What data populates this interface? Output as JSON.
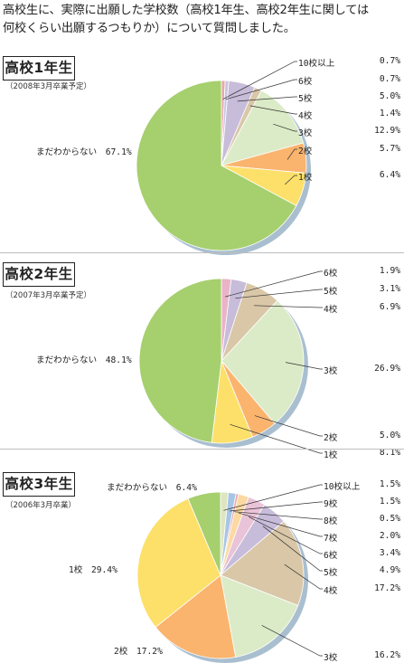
{
  "header": {
    "title_line1": "高校生に、実際に出願した学校数（高校1年生、高校2年生に関しては",
    "title_line2": "何校くらい出願するつもりか）について質問しました。"
  },
  "chart_data": [
    {
      "type": "pie",
      "title": "高校1年生",
      "subtitle": "（2008年3月卒業予定）",
      "start": "top",
      "direction": "clockwise",
      "slices": [
        {
          "label": "10校以上",
          "value": 0.7,
          "display": "0.7%",
          "color": "#e9a6a8"
        },
        {
          "label": "6校",
          "value": 0.7,
          "display": "0.7%",
          "color": "#c9c4e3"
        },
        {
          "label": "5校",
          "value": 5.0,
          "display": "5.0%",
          "color": "#c7bcd9"
        },
        {
          "label": "4校",
          "value": 1.4,
          "display": "1.4%",
          "color": "#d9c7a8"
        },
        {
          "label": "3校",
          "value": 12.9,
          "display": "12.9%",
          "color": "#dbebc7"
        },
        {
          "label": "2校",
          "value": 5.7,
          "display": "5.7%",
          "color": "#fab46e"
        },
        {
          "label": "1校",
          "value": 6.4,
          "display": "6.4%",
          "color": "#fde06a"
        },
        {
          "label": "まだわからない",
          "value": 67.1,
          "display": "67.1%",
          "color": "#a6cf6e"
        }
      ]
    },
    {
      "type": "pie",
      "title": "高校2年生",
      "subtitle": "（2007年3月卒業予定）",
      "start": "top",
      "direction": "clockwise",
      "slices": [
        {
          "label": "6校",
          "value": 1.9,
          "display": "1.9%",
          "color": "#e9b3c8"
        },
        {
          "label": "5校",
          "value": 3.1,
          "display": "3.1%",
          "color": "#c7bcd9"
        },
        {
          "label": "4校",
          "value": 6.9,
          "display": "6.9%",
          "color": "#d9c7a8"
        },
        {
          "label": "3校",
          "value": 26.9,
          "display": "26.9%",
          "color": "#dbebc7"
        },
        {
          "label": "2校",
          "value": 5.0,
          "display": "5.0%",
          "color": "#fab46e"
        },
        {
          "label": "1校",
          "value": 8.1,
          "display": "8.1%",
          "color": "#fde06a"
        },
        {
          "label": "まだわからない",
          "value": 48.1,
          "display": "48.1%",
          "color": "#a6cf6e"
        }
      ]
    },
    {
      "type": "pie",
      "title": "高校3年生",
      "subtitle": "（2006年3月卒業）",
      "start": "top",
      "direction": "clockwise",
      "slices": [
        {
          "label": "10校以上",
          "value": 1.5,
          "display": "1.5%",
          "color": "#dde6c0"
        },
        {
          "label": "9校",
          "value": 1.5,
          "display": "1.5%",
          "color": "#a7c6e6"
        },
        {
          "label": "8校",
          "value": 0.5,
          "display": "0.5%",
          "color": "#f0a8b0"
        },
        {
          "label": "7校",
          "value": 2.0,
          "display": "2.0%",
          "color": "#fbd9a0"
        },
        {
          "label": "6校",
          "value": 3.4,
          "display": "3.4%",
          "color": "#e9c3d7"
        },
        {
          "label": "5校",
          "value": 4.9,
          "display": "4.9%",
          "color": "#c7bcd9"
        },
        {
          "label": "4校",
          "value": 17.2,
          "display": "17.2%",
          "color": "#d9c7a8"
        },
        {
          "label": "3校",
          "value": 16.2,
          "display": "16.2%",
          "color": "#dbebc7"
        },
        {
          "label": "2校",
          "value": 17.2,
          "display": "17.2%",
          "color": "#fab46e"
        },
        {
          "label": "1校",
          "value": 29.4,
          "display": "29.4%",
          "color": "#fde06a"
        },
        {
          "label": "まだわからない",
          "value": 6.4,
          "display": "6.4%",
          "color": "#a6cf6e"
        }
      ]
    }
  ]
}
